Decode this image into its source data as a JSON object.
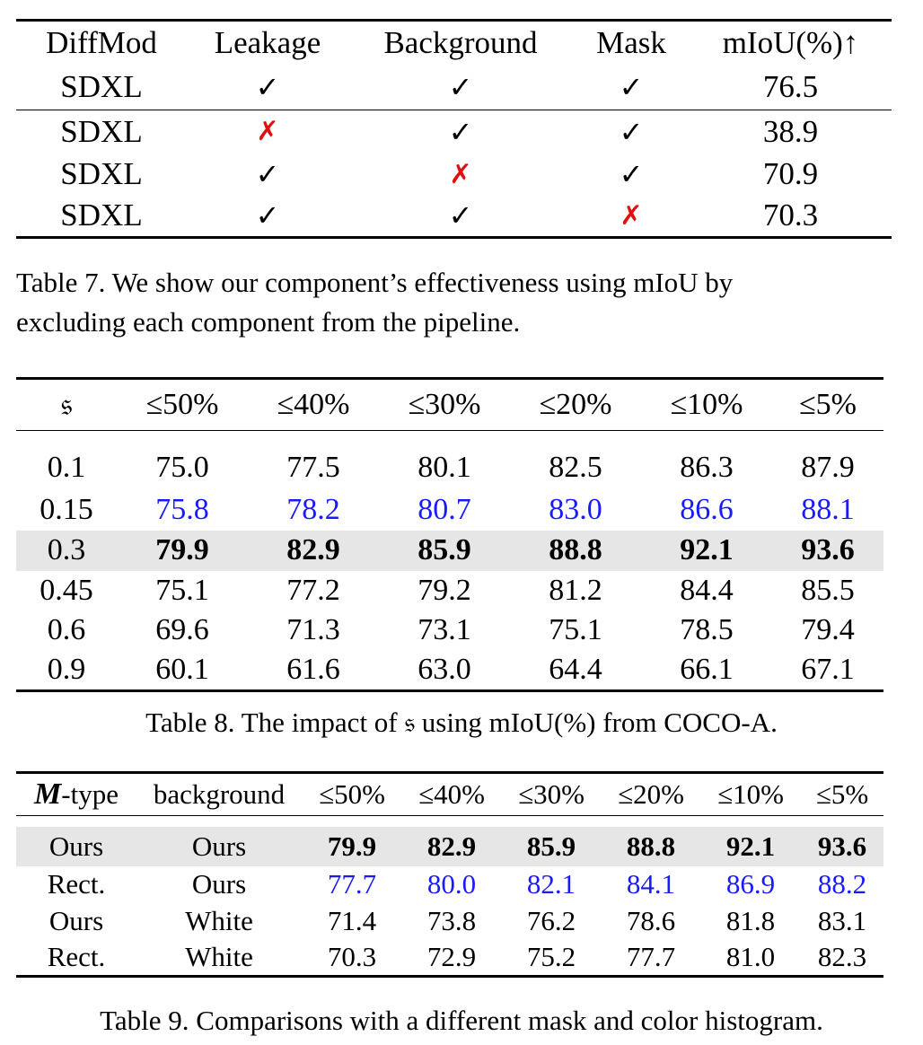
{
  "table7": {
    "headers": [
      "DiffMod",
      "Leakage",
      "Background",
      "Mask",
      "mIoU(%)↑"
    ],
    "rows": [
      {
        "model": "SDXL",
        "leakage": "✓",
        "background": "✓",
        "mask": "✓",
        "miou": "76.5"
      },
      {
        "model": "SDXL",
        "leakage": "✗",
        "background": "✓",
        "mask": "✓",
        "miou": "38.9"
      },
      {
        "model": "SDXL",
        "leakage": "✓",
        "background": "✗",
        "mask": "✓",
        "miou": "70.9"
      },
      {
        "model": "SDXL",
        "leakage": "✓",
        "background": "✓",
        "mask": "✗",
        "miou": "70.3"
      }
    ],
    "caption_line1": "Table 7.  We show our component’s effectiveness using mIoU by",
    "caption_line2": "excluding each component from the pipeline."
  },
  "table8": {
    "headers": [
      "𝔰",
      "≤50%",
      "≤40%",
      "≤30%",
      "≤20%",
      "≤10%",
      "≤5%"
    ],
    "rows": [
      {
        "s": "0.1",
        "values": [
          "75.0",
          "77.5",
          "80.1",
          "82.5",
          "86.3",
          "87.9"
        ],
        "style": "normal"
      },
      {
        "s": "0.15",
        "values": [
          "75.8",
          "78.2",
          "80.7",
          "83.0",
          "86.6",
          "88.1"
        ],
        "style": "second"
      },
      {
        "s": "0.3",
        "values": [
          "79.9",
          "82.9",
          "85.9",
          "88.8",
          "92.1",
          "93.6"
        ],
        "style": "best"
      },
      {
        "s": "0.45",
        "values": [
          "75.1",
          "77.2",
          "79.2",
          "81.2",
          "84.4",
          "85.5"
        ],
        "style": "normal"
      },
      {
        "s": "0.6",
        "values": [
          "69.6",
          "71.3",
          "73.1",
          "75.1",
          "78.5",
          "79.4"
        ],
        "style": "normal"
      },
      {
        "s": "0.9",
        "values": [
          "60.1",
          "61.6",
          "63.0",
          "64.4",
          "66.1",
          "67.1"
        ],
        "style": "normal"
      }
    ],
    "caption": "Table 8. The impact of 𝔰 using mIoU(%) from COCO-A."
  },
  "table9": {
    "header_m": "M",
    "header_type": "-type",
    "headers": [
      "background",
      "≤50%",
      "≤40%",
      "≤30%",
      "≤20%",
      "≤10%",
      "≤5%"
    ],
    "rows": [
      {
        "mtype": "Ours",
        "background": "Ours",
        "values": [
          "79.9",
          "82.9",
          "85.9",
          "88.8",
          "92.1",
          "93.6"
        ],
        "style": "best"
      },
      {
        "mtype": "Rect.",
        "background": "Ours",
        "values": [
          "77.7",
          "80.0",
          "82.1",
          "84.1",
          "86.9",
          "88.2"
        ],
        "style": "second"
      },
      {
        "mtype": "Ours",
        "background": "White",
        "values": [
          "71.4",
          "73.8",
          "76.2",
          "78.6",
          "81.8",
          "83.1"
        ],
        "style": "normal"
      },
      {
        "mtype": "Rect.",
        "background": "White",
        "values": [
          "70.3",
          "72.9",
          "75.2",
          "77.7",
          "81.0",
          "82.3"
        ],
        "style": "normal"
      }
    ],
    "caption": "Table 9. Comparisons with a different mask and color histogram."
  },
  "colors": {
    "highlight": "#e6e6e6",
    "second_best": "#1a1aff",
    "cross": "#e01010"
  }
}
